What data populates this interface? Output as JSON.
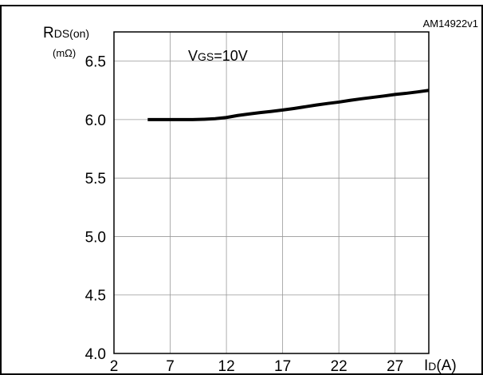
{
  "chart_data": {
    "type": "line",
    "figure_code": "AM14922v1",
    "ylabel_main": "R",
    "ylabel_sub": "DS(on)",
    "yunit": "(mΩ)",
    "xlabel_main": "I",
    "xlabel_sub": "D",
    "xunit": "(A)",
    "annotation": {
      "main": "V",
      "sub": "GS",
      "rest": "=10V"
    },
    "xlim": [
      2,
      30
    ],
    "ylim": [
      4.0,
      6.75
    ],
    "x_ticks": [
      2,
      7,
      12,
      17,
      22,
      27
    ],
    "x_tick_labels": [
      "2",
      "7",
      "12",
      "17",
      "22",
      "27"
    ],
    "y_ticks": [
      4.0,
      4.5,
      5.0,
      5.5,
      6.0,
      6.5
    ],
    "y_tick_labels": [
      "4.0",
      "4.5",
      "5.0",
      "5.5",
      "6.0",
      "6.5"
    ],
    "grid": true,
    "series": [
      {
        "x": [
          5,
          7,
          9,
          10,
          11,
          12,
          13,
          14,
          15,
          16,
          17,
          18,
          19,
          20,
          21,
          22,
          23,
          24,
          25,
          26,
          27,
          28,
          29,
          30
        ],
        "y": [
          6.0,
          6.0,
          6.0,
          6.003,
          6.008,
          6.018,
          6.035,
          6.048,
          6.06,
          6.07,
          6.082,
          6.095,
          6.11,
          6.125,
          6.138,
          6.15,
          6.165,
          6.178,
          6.19,
          6.202,
          6.215,
          6.225,
          6.237,
          6.25
        ]
      }
    ],
    "colors": {
      "line": "#000000",
      "grid": "#999999",
      "frame": "#000000"
    }
  }
}
